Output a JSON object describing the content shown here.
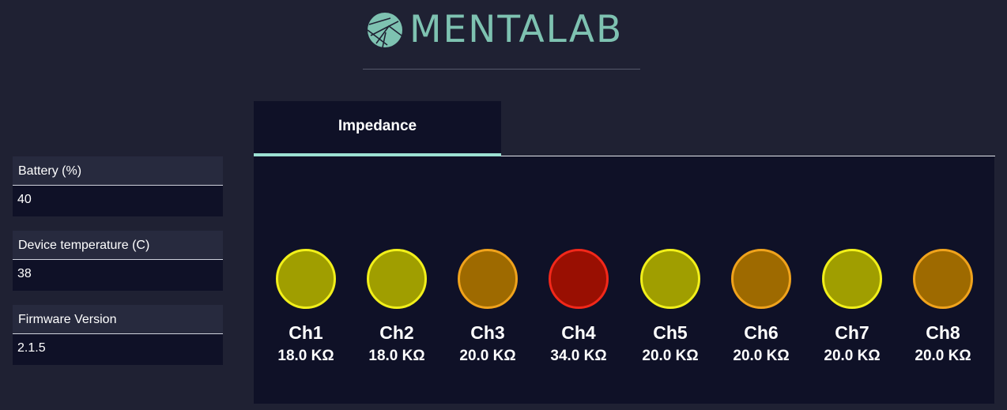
{
  "brand": {
    "name": "MENTALAB",
    "color": "#7ec2b1"
  },
  "device_info": [
    {
      "label": "Battery (%)",
      "value": "40"
    },
    {
      "label": "Device temperature (C)",
      "value": "38"
    },
    {
      "label": "Firmware Version",
      "value": "2.1.5"
    }
  ],
  "tabs": [
    {
      "label": "Impedance",
      "active": true
    }
  ],
  "status_colors": {
    "warn": "#f2f01a",
    "orange": "#f0a31c",
    "bad": "#f2281a"
  },
  "channels": [
    {
      "name": "Ch1",
      "value": "18.0 KΩ",
      "status": "warn"
    },
    {
      "name": "Ch2",
      "value": "18.0 KΩ",
      "status": "warn"
    },
    {
      "name": "Ch3",
      "value": "20.0 KΩ",
      "status": "orange"
    },
    {
      "name": "Ch4",
      "value": "34.0 KΩ",
      "status": "bad"
    },
    {
      "name": "Ch5",
      "value": "20.0 KΩ",
      "status": "warn"
    },
    {
      "name": "Ch6",
      "value": "20.0 KΩ",
      "status": "orange"
    },
    {
      "name": "Ch7",
      "value": "20.0 KΩ",
      "status": "warn"
    },
    {
      "name": "Ch8",
      "value": "20.0 KΩ",
      "status": "orange"
    }
  ]
}
